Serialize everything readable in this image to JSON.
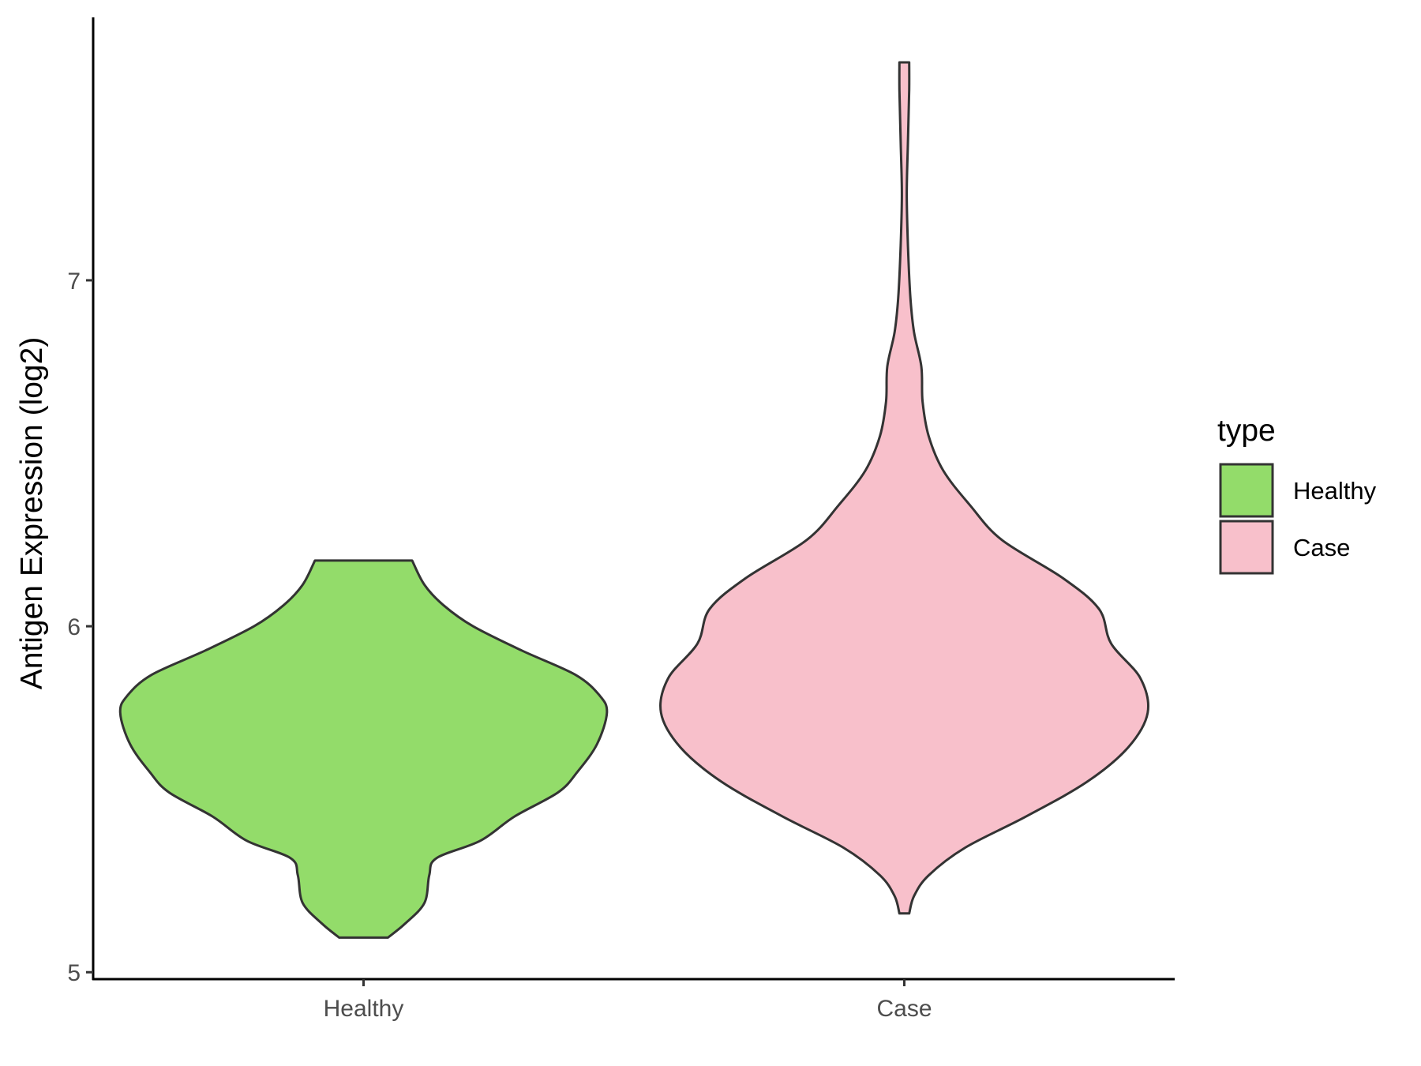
{
  "chart_data": {
    "type": "violin",
    "ylabel": "Antigen Expression (log2)",
    "xlabel": "",
    "ylim": [
      4.98,
      7.76
    ],
    "yticks": [
      "5",
      "6",
      "7"
    ],
    "categories": [
      "Healthy",
      "Case"
    ],
    "legend": {
      "title": "type",
      "position": "right",
      "items": [
        {
          "label": "Healthy",
          "color": "#93dc6a"
        },
        {
          "label": "Case",
          "color": "#f8c0cb"
        }
      ]
    },
    "series": [
      {
        "name": "Healthy",
        "color": "#93dc6a",
        "ymin": 5.1,
        "ymax": 6.19,
        "density": [
          [
            5.1,
            0.1
          ],
          [
            5.14,
            0.17
          ],
          [
            5.2,
            0.25
          ],
          [
            5.28,
            0.27
          ],
          [
            5.33,
            0.3
          ],
          [
            5.38,
            0.48
          ],
          [
            5.45,
            0.62
          ],
          [
            5.52,
            0.8
          ],
          [
            5.58,
            0.88
          ],
          [
            5.66,
            0.96
          ],
          [
            5.75,
            1.0
          ],
          [
            5.8,
            0.97
          ],
          [
            5.86,
            0.87
          ],
          [
            5.93,
            0.65
          ],
          [
            6.0,
            0.45
          ],
          [
            6.06,
            0.33
          ],
          [
            6.12,
            0.25
          ],
          [
            6.19,
            0.2
          ]
        ]
      },
      {
        "name": "Case",
        "color": "#f8c0cb",
        "ymin": 5.17,
        "ymax": 7.63,
        "density": [
          [
            5.17,
            0.02
          ],
          [
            5.22,
            0.04
          ],
          [
            5.28,
            0.1
          ],
          [
            5.36,
            0.25
          ],
          [
            5.45,
            0.5
          ],
          [
            5.55,
            0.75
          ],
          [
            5.65,
            0.92
          ],
          [
            5.75,
            1.0
          ],
          [
            5.85,
            0.97
          ],
          [
            5.95,
            0.85
          ],
          [
            6.05,
            0.8
          ],
          [
            6.14,
            0.65
          ],
          [
            6.25,
            0.4
          ],
          [
            6.35,
            0.27
          ],
          [
            6.45,
            0.16
          ],
          [
            6.55,
            0.1
          ],
          [
            6.65,
            0.075
          ],
          [
            6.75,
            0.07
          ],
          [
            6.85,
            0.04
          ],
          [
            6.95,
            0.025
          ],
          [
            7.1,
            0.015
          ],
          [
            7.25,
            0.01
          ],
          [
            7.4,
            0.015
          ],
          [
            7.55,
            0.02
          ],
          [
            7.63,
            0.02
          ]
        ]
      }
    ]
  }
}
